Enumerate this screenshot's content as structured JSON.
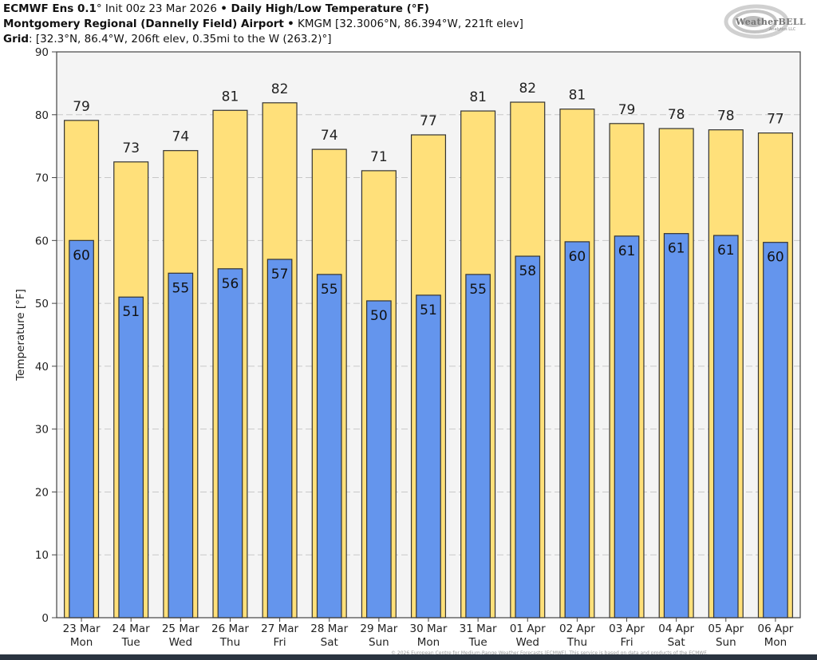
{
  "header": {
    "model": "ECMWF Ens 0.1",
    "model_deg": "°",
    "init": " Init 00z 23 Mar 2026 ",
    "bullet": "•",
    "product": " Daily High/Low Temperature (°F)",
    "station_name": "Montgomery Regional (Dannelly Field) Airport",
    "station_info": " KMGM [32.3006°N, 86.394°W, 221ft elev]",
    "grid_label": "Grid",
    "grid_info": ": [32.3°N, 86.4°W, 206ft elev, 0.35mi to the W (263.2)°]"
  },
  "logo": {
    "name": "WeatherBELL",
    "sub": "Analytics LLC"
  },
  "footer": {
    "text": "© 2026 European Centre for Medium-Range Weather Forecasts (ECMWF). This service is based on data and products of the ECMWF."
  },
  "colors": {
    "high_bar": "#FFE07A",
    "low_bar": "#6495ED",
    "plot_bg": "#F4F4F4",
    "bar_edge": "#333333",
    "grid": "#C8C8C8"
  },
  "chart_data": {
    "type": "bar",
    "title": "Daily High/Low Temperature (°F)",
    "xlabel": "",
    "ylabel": "Temperature [°F]",
    "ylim": [
      0,
      90
    ],
    "yticks": [
      0,
      10,
      20,
      30,
      40,
      50,
      60,
      70,
      80,
      90
    ],
    "grid": true,
    "legend": "none",
    "categories": [
      [
        "23 Mar",
        "Mon"
      ],
      [
        "24 Mar",
        "Tue"
      ],
      [
        "25 Mar",
        "Wed"
      ],
      [
        "26 Mar",
        "Thu"
      ],
      [
        "27 Mar",
        "Fri"
      ],
      [
        "28 Mar",
        "Sat"
      ],
      [
        "29 Mar",
        "Sun"
      ],
      [
        "30 Mar",
        "Mon"
      ],
      [
        "31 Mar",
        "Tue"
      ],
      [
        "01 Apr",
        "Wed"
      ],
      [
        "02 Apr",
        "Thu"
      ],
      [
        "03 Apr",
        "Fri"
      ],
      [
        "04 Apr",
        "Sat"
      ],
      [
        "05 Apr",
        "Sun"
      ],
      [
        "06 Apr",
        "Mon"
      ]
    ],
    "series": [
      {
        "name": "High",
        "values": [
          79.1,
          72.5,
          74.3,
          80.7,
          81.9,
          74.5,
          71.1,
          76.8,
          80.6,
          82.0,
          80.9,
          78.6,
          77.8,
          77.6,
          77.1
        ],
        "labels": [
          "79",
          "73",
          "74",
          "81",
          "82",
          "74",
          "71",
          "77",
          "81",
          "82",
          "81",
          "79",
          "78",
          "78",
          "77"
        ]
      },
      {
        "name": "Low",
        "values": [
          60.0,
          51.0,
          54.8,
          55.5,
          57.0,
          54.6,
          50.4,
          51.3,
          54.6,
          57.5,
          59.8,
          60.7,
          61.1,
          60.8,
          59.7
        ],
        "labels": [
          "60",
          "51",
          "55",
          "56",
          "57",
          "55",
          "50",
          "51",
          "55",
          "58",
          "60",
          "61",
          "61",
          "61",
          "60"
        ]
      }
    ]
  }
}
